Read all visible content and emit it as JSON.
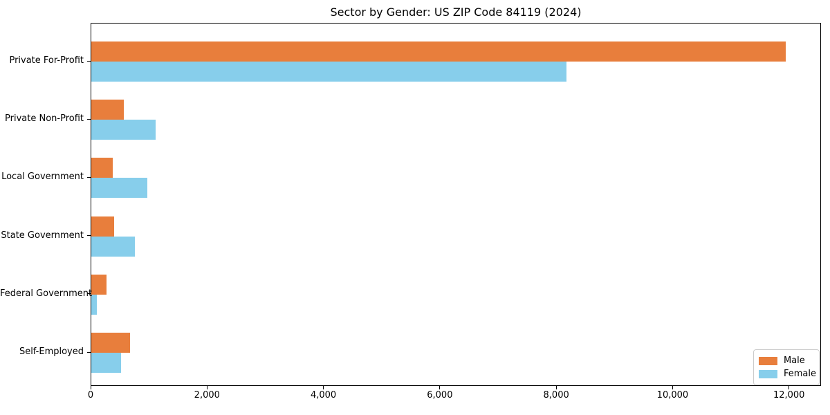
{
  "chart_data": {
    "type": "bar",
    "orientation": "horizontal",
    "title": "Sector by Gender: US ZIP Code 84119 (2024)",
    "categories": [
      "Private For-Profit",
      "Private Non-Profit",
      "Local Government",
      "State Government",
      "Federal Government",
      "Self-Employed"
    ],
    "series": [
      {
        "name": "Male",
        "color": "#e87e3c",
        "values": [
          11950,
          565,
          375,
          390,
          260,
          665
        ]
      },
      {
        "name": "Female",
        "color": "#87ceeb",
        "values": [
          8180,
          1110,
          970,
          750,
          90,
          510
        ]
      }
    ],
    "xlabel": "",
    "ylabel": "",
    "xlim": [
      0,
      12550
    ],
    "x_ticks": [
      0,
      2000,
      4000,
      6000,
      8000,
      10000,
      12000
    ],
    "x_tick_labels": [
      "0",
      "2,000",
      "4,000",
      "6,000",
      "8,000",
      "10,000",
      "12,000"
    ],
    "grid": false,
    "legend": {
      "position": "lower right",
      "entries": [
        "Male",
        "Female"
      ]
    }
  },
  "colors": {
    "male": "#e87e3c",
    "female": "#87ceeb",
    "spine": "#000000",
    "legend_border": "#cccccc"
  }
}
